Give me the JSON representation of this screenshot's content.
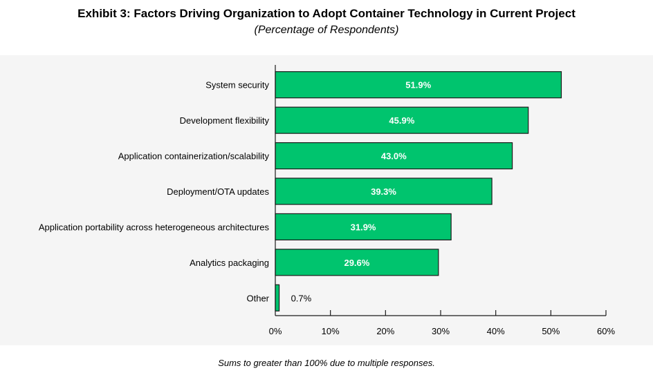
{
  "chart_data": {
    "type": "bar",
    "orientation": "horizontal",
    "title": "Exhibit 3: Factors Driving Organization to Adopt Container Technology in Current Project",
    "subtitle": "(Percentage of Respondents)",
    "xlabel": "",
    "ylabel": "",
    "categories": [
      "System security",
      "Development flexibility",
      "Application containerization/scalability",
      "Deployment/OTA updates",
      "Application portability across heterogeneous architectures",
      "Analytics packaging",
      "Other"
    ],
    "values": [
      51.9,
      45.9,
      43.0,
      39.3,
      31.9,
      29.6,
      0.7
    ],
    "data_labels": [
      "51.9%",
      "45.9%",
      "43.0%",
      "39.3%",
      "31.9%",
      "29.6%",
      "0.7%"
    ],
    "xlim": [
      0,
      60
    ],
    "xticks": [
      0,
      10,
      20,
      30,
      40,
      50,
      60
    ],
    "xtick_labels": [
      "0%",
      "10%",
      "20%",
      "30%",
      "40%",
      "50%",
      "60%"
    ],
    "grid": false,
    "legend": "none",
    "bar_color": "#00c46e",
    "footnote": "Sums to greater than 100% due to multiple responses."
  }
}
